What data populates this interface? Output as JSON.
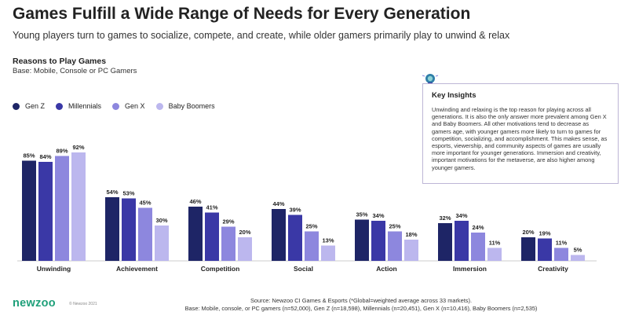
{
  "header": {
    "title": "Games Fulfill a Wide Range of Needs for Every Generation",
    "subtitle": "Young players turn to games to socialize, compete, and create, while older gamers primarily play to unwind & relax"
  },
  "section": {
    "title": "Reasons to Play Games",
    "base": "Base: Mobile, Console or PC Gamers"
  },
  "insights": {
    "title": "Key Insights",
    "body": "Unwinding and relaxing is the top reason for playing across all generations. It is also the only answer more prevalent among Gen X and Baby Boomers. All other motivations tend to decrease as gamers age, with younger gamers more likely to turn to games for competition, socializing, and accomplishment. This makes sense, as esports, viewership, and community aspects of games are usually more important for younger generations. Immersion and creativity, important motivations for the metaverse, are also higher among younger gamers."
  },
  "footer": {
    "logo": "newzoo",
    "copyright": "© Newzoo 2021",
    "source_line1": "Source: Newzoo CI Games & Esports (*Global=weighted average across 33 markets).",
    "source_line2": "Base: Mobile, console, or PC gamers (n=52,000), Gen Z (n=18,598), Millennials (n=20,451), Gen X (n=10,416), Baby Boomers (n=2,535)"
  },
  "colors": {
    "gen_z": "#1e2566",
    "millennials": "#3a38a6",
    "gen_x": "#8d87de",
    "baby_boomers": "#bcb7ee",
    "logo": "#1fa07a"
  },
  "chart_data": {
    "type": "bar",
    "categories": [
      "Unwinding",
      "Achievement",
      "Competition",
      "Social",
      "Action",
      "Immersion",
      "Creativity"
    ],
    "series": [
      {
        "name": "Gen Z",
        "values": [
          85,
          54,
          46,
          44,
          35,
          32,
          20
        ]
      },
      {
        "name": "Millennials",
        "values": [
          84,
          53,
          41,
          39,
          34,
          34,
          19
        ]
      },
      {
        "name": "Gen X",
        "values": [
          89,
          45,
          29,
          25,
          25,
          24,
          11
        ]
      },
      {
        "name": "Baby Boomers",
        "values": [
          92,
          30,
          20,
          13,
          18,
          11,
          5
        ]
      }
    ],
    "value_suffix": "%",
    "ylim": [
      0,
      100
    ],
    "grid": false,
    "legend": "top-left"
  }
}
